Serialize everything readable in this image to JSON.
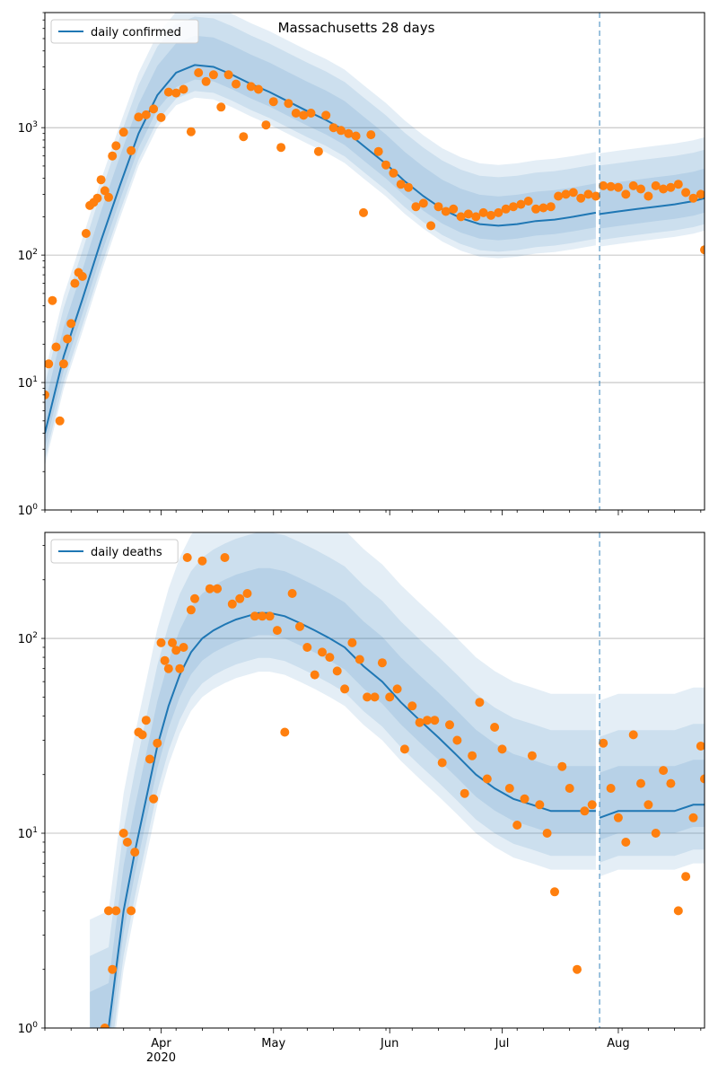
{
  "figure": {
    "title": "Massachusetts 28 days"
  },
  "chart_data": [
    {
      "type": "line",
      "panel": "top",
      "title": "Massachusetts 28 days",
      "legend": [
        "daily confirmed"
      ],
      "legend_placement": "top-left",
      "y_scale": "log",
      "ylim": [
        1,
        8000
      ],
      "y_ticks": [
        1,
        10,
        100,
        1000
      ],
      "y_tick_labels": [
        "10^0",
        "10^1",
        "10^2",
        "10^3"
      ],
      "grid": "horizontal",
      "xlim": [
        "2020-03-01",
        "2020-08-24"
      ],
      "x_ticks": [
        "2020-04-01",
        "2020-05-01",
        "2020-06-01",
        "2020-07-01",
        "2020-08-01"
      ],
      "x_tick_labels": [
        "",
        "",
        "",
        "",
        ""
      ],
      "vline": "2020-07-27",
      "model_dates": [
        "2020-03-01",
        "2020-03-06",
        "2020-03-11",
        "2020-03-16",
        "2020-03-21",
        "2020-03-26",
        "2020-03-31",
        "2020-04-05",
        "2020-04-10",
        "2020-04-15",
        "2020-04-20",
        "2020-04-25",
        "2020-04-30",
        "2020-05-05",
        "2020-05-10",
        "2020-05-15",
        "2020-05-20",
        "2020-05-25",
        "2020-05-31",
        "2020-06-05",
        "2020-06-10",
        "2020-06-15",
        "2020-06-20",
        "2020-06-25",
        "2020-06-30",
        "2020-07-05",
        "2020-07-10",
        "2020-07-15",
        "2020-07-20",
        "2020-07-26",
        "2020-07-27",
        "2020-08-01",
        "2020-08-06",
        "2020-08-11",
        "2020-08-16",
        "2020-08-21",
        "2020-08-24"
      ],
      "series": [
        {
          "name": "daily confirmed",
          "color": "#1f77b4",
          "values": [
            4,
            16,
            45,
            130,
            350,
            900,
            1800,
            2700,
            3100,
            3000,
            2600,
            2200,
            1900,
            1600,
            1350,
            1150,
            950,
            720,
            520,
            380,
            290,
            230,
            195,
            175,
            170,
            175,
            185,
            190,
            200,
            215,
            210,
            220,
            230,
            240,
            250,
            265,
            280
          ]
        }
      ],
      "band_ratios": [
        [
          1.3,
          1.7
        ],
        [
          1.6,
          2.4
        ],
        [
          1.8,
          3.0
        ]
      ],
      "band_colors": [
        "#1f77b4",
        "#1f77b4",
        "#1f77b4"
      ],
      "observed": {
        "name": "observed daily confirmed",
        "color": "#ff7f0e",
        "dates": [
          "2020-03-01",
          "2020-03-02",
          "2020-03-03",
          "2020-03-04",
          "2020-03-05",
          "2020-03-06",
          "2020-03-07",
          "2020-03-08",
          "2020-03-09",
          "2020-03-10",
          "2020-03-11",
          "2020-03-12",
          "2020-03-13",
          "2020-03-14",
          "2020-03-15",
          "2020-03-16",
          "2020-03-17",
          "2020-03-18",
          "2020-03-19",
          "2020-03-20",
          "2020-03-22",
          "2020-03-24",
          "2020-03-26",
          "2020-03-28",
          "2020-03-30",
          "2020-04-01",
          "2020-04-03",
          "2020-04-05",
          "2020-04-07",
          "2020-04-09",
          "2020-04-11",
          "2020-04-13",
          "2020-04-15",
          "2020-04-17",
          "2020-04-19",
          "2020-04-21",
          "2020-04-23",
          "2020-04-25",
          "2020-04-27",
          "2020-04-29",
          "2020-05-01",
          "2020-05-03",
          "2020-05-05",
          "2020-05-07",
          "2020-05-09",
          "2020-05-11",
          "2020-05-13",
          "2020-05-15",
          "2020-05-17",
          "2020-05-19",
          "2020-05-21",
          "2020-05-23",
          "2020-05-25",
          "2020-05-27",
          "2020-05-29",
          "2020-05-31",
          "2020-06-02",
          "2020-06-04",
          "2020-06-06",
          "2020-06-08",
          "2020-06-10",
          "2020-06-12",
          "2020-06-14",
          "2020-06-16",
          "2020-06-18",
          "2020-06-20",
          "2020-06-22",
          "2020-06-24",
          "2020-06-26",
          "2020-06-28",
          "2020-06-30",
          "2020-07-02",
          "2020-07-04",
          "2020-07-06",
          "2020-07-08",
          "2020-07-10",
          "2020-07-12",
          "2020-07-14",
          "2020-07-16",
          "2020-07-18",
          "2020-07-20",
          "2020-07-22",
          "2020-07-24",
          "2020-07-26",
          "2020-07-28",
          "2020-07-30",
          "2020-08-01",
          "2020-08-03",
          "2020-08-05",
          "2020-08-07",
          "2020-08-09",
          "2020-08-11",
          "2020-08-13",
          "2020-08-15",
          "2020-08-17",
          "2020-08-19",
          "2020-08-21",
          "2020-08-23",
          "2020-08-24"
        ],
        "values": [
          8,
          14,
          44,
          19,
          5,
          14,
          22,
          29,
          60,
          73,
          68,
          148,
          245,
          259,
          280,
          390,
          320,
          284,
          600,
          720,
          920,
          660,
          1210,
          1260,
          1400,
          1200,
          1900,
          1870,
          2000,
          930,
          2700,
          2300,
          2600,
          1450,
          2600,
          2200,
          850,
          2100,
          2000,
          1050,
          1600,
          700,
          1550,
          1300,
          1250,
          1300,
          650,
          1250,
          1000,
          950,
          900,
          860,
          215,
          880,
          650,
          510,
          440,
          360,
          340,
          240,
          255,
          170,
          240,
          220,
          230,
          200,
          210,
          200,
          215,
          205,
          215,
          230,
          240,
          250,
          265,
          230,
          235,
          240,
          290,
          300,
          310,
          280,
          300,
          290,
          350,
          345,
          340,
          300,
          350,
          330,
          290,
          350,
          330,
          340,
          360,
          310,
          280,
          300,
          110
        ]
      }
    },
    {
      "type": "line",
      "panel": "bottom",
      "legend": [
        "daily deaths"
      ],
      "legend_placement": "top-left",
      "y_scale": "log",
      "ylim": [
        1,
        350
      ],
      "y_ticks": [
        1,
        10,
        100
      ],
      "y_tick_labels": [
        "10^0",
        "10^1",
        "10^2"
      ],
      "grid": "horizontal",
      "xlim": [
        "2020-03-01",
        "2020-08-24"
      ],
      "x_ticks": [
        "2020-04-01",
        "2020-05-01",
        "2020-06-01",
        "2020-07-01",
        "2020-08-01"
      ],
      "x_tick_labels": [
        "Apr\n2020",
        "May",
        "Jun",
        "Jul",
        "Aug"
      ],
      "vline": "2020-07-27",
      "model_dates": [
        "2020-03-13",
        "2020-03-18",
        "2020-03-20",
        "2020-03-22",
        "2020-03-25",
        "2020-03-28",
        "2020-03-31",
        "2020-04-03",
        "2020-04-06",
        "2020-04-09",
        "2020-04-12",
        "2020-04-15",
        "2020-04-18",
        "2020-04-21",
        "2020-04-24",
        "2020-04-27",
        "2020-04-30",
        "2020-05-04",
        "2020-05-08",
        "2020-05-12",
        "2020-05-16",
        "2020-05-20",
        "2020-05-25",
        "2020-05-30",
        "2020-06-04",
        "2020-06-09",
        "2020-06-14",
        "2020-06-19",
        "2020-06-24",
        "2020-06-29",
        "2020-07-04",
        "2020-07-09",
        "2020-07-14",
        "2020-07-19",
        "2020-07-26",
        "2020-07-27",
        "2020-08-01",
        "2020-08-06",
        "2020-08-11",
        "2020-08-16",
        "2020-08-21",
        "2020-08-24"
      ],
      "series": [
        {
          "name": "daily deaths",
          "color": "#1f77b4",
          "values": [
            0.9,
            1,
            2,
            4,
            8,
            15,
            28,
            45,
            65,
            85,
            100,
            110,
            118,
            125,
            130,
            135,
            135,
            130,
            120,
            110,
            100,
            90,
            72,
            60,
            47,
            38,
            31,
            25,
            20,
            17,
            15,
            14,
            13,
            13,
            13,
            12,
            13,
            13,
            13,
            13,
            14,
            14
          ]
        }
      ],
      "band_ratios": [
        [
          1.3,
          1.7
        ],
        [
          1.7,
          2.6
        ],
        [
          2.0,
          4.0
        ]
      ],
      "band_colors": [
        "#1f77b4",
        "#1f77b4",
        "#1f77b4"
      ],
      "observed": {
        "name": "observed daily deaths",
        "color": "#ff7f0e",
        "dates": [
          "2020-03-17",
          "2020-03-18",
          "2020-03-19",
          "2020-03-20",
          "2020-03-22",
          "2020-03-23",
          "2020-03-24",
          "2020-03-25",
          "2020-03-26",
          "2020-03-27",
          "2020-03-28",
          "2020-03-29",
          "2020-03-30",
          "2020-03-31",
          "2020-04-01",
          "2020-04-02",
          "2020-04-03",
          "2020-04-04",
          "2020-04-05",
          "2020-04-06",
          "2020-04-07",
          "2020-04-08",
          "2020-04-09",
          "2020-04-10",
          "2020-04-12",
          "2020-04-14",
          "2020-04-16",
          "2020-04-18",
          "2020-04-20",
          "2020-04-22",
          "2020-04-24",
          "2020-04-26",
          "2020-04-28",
          "2020-04-30",
          "2020-05-02",
          "2020-05-04",
          "2020-05-06",
          "2020-05-08",
          "2020-05-10",
          "2020-05-12",
          "2020-05-14",
          "2020-05-16",
          "2020-05-18",
          "2020-05-20",
          "2020-05-22",
          "2020-05-24",
          "2020-05-26",
          "2020-05-28",
          "2020-05-30",
          "2020-06-01",
          "2020-06-03",
          "2020-06-05",
          "2020-06-07",
          "2020-06-09",
          "2020-06-11",
          "2020-06-13",
          "2020-06-15",
          "2020-06-17",
          "2020-06-19",
          "2020-06-21",
          "2020-06-23",
          "2020-06-25",
          "2020-06-27",
          "2020-06-29",
          "2020-07-01",
          "2020-07-03",
          "2020-07-05",
          "2020-07-07",
          "2020-07-09",
          "2020-07-11",
          "2020-07-13",
          "2020-07-15",
          "2020-07-17",
          "2020-07-19",
          "2020-07-21",
          "2020-07-23",
          "2020-07-25",
          "2020-07-28",
          "2020-07-30",
          "2020-08-01",
          "2020-08-03",
          "2020-08-05",
          "2020-08-07",
          "2020-08-09",
          "2020-08-11",
          "2020-08-13",
          "2020-08-15",
          "2020-08-17",
          "2020-08-19",
          "2020-08-21",
          "2020-08-23",
          "2020-08-24"
        ],
        "values": [
          1,
          4,
          2,
          4,
          10,
          9,
          4,
          8,
          33,
          32,
          38,
          24,
          15,
          29,
          95,
          77,
          70,
          95,
          87,
          70,
          90,
          260,
          140,
          160,
          250,
          180,
          180,
          260,
          150,
          160,
          170,
          130,
          130,
          130,
          110,
          33,
          170,
          115,
          90,
          65,
          85,
          80,
          68,
          55,
          95,
          78,
          50,
          50,
          75,
          50,
          55,
          27,
          45,
          37,
          38,
          38,
          23,
          36,
          30,
          16,
          25,
          47,
          19,
          35,
          27,
          17,
          11,
          15,
          25,
          14,
          10,
          5,
          22,
          17,
          2,
          13,
          14,
          29,
          17,
          12,
          9,
          32,
          18,
          14,
          10,
          21,
          18,
          4,
          6,
          12,
          28,
          19
        ]
      }
    }
  ]
}
